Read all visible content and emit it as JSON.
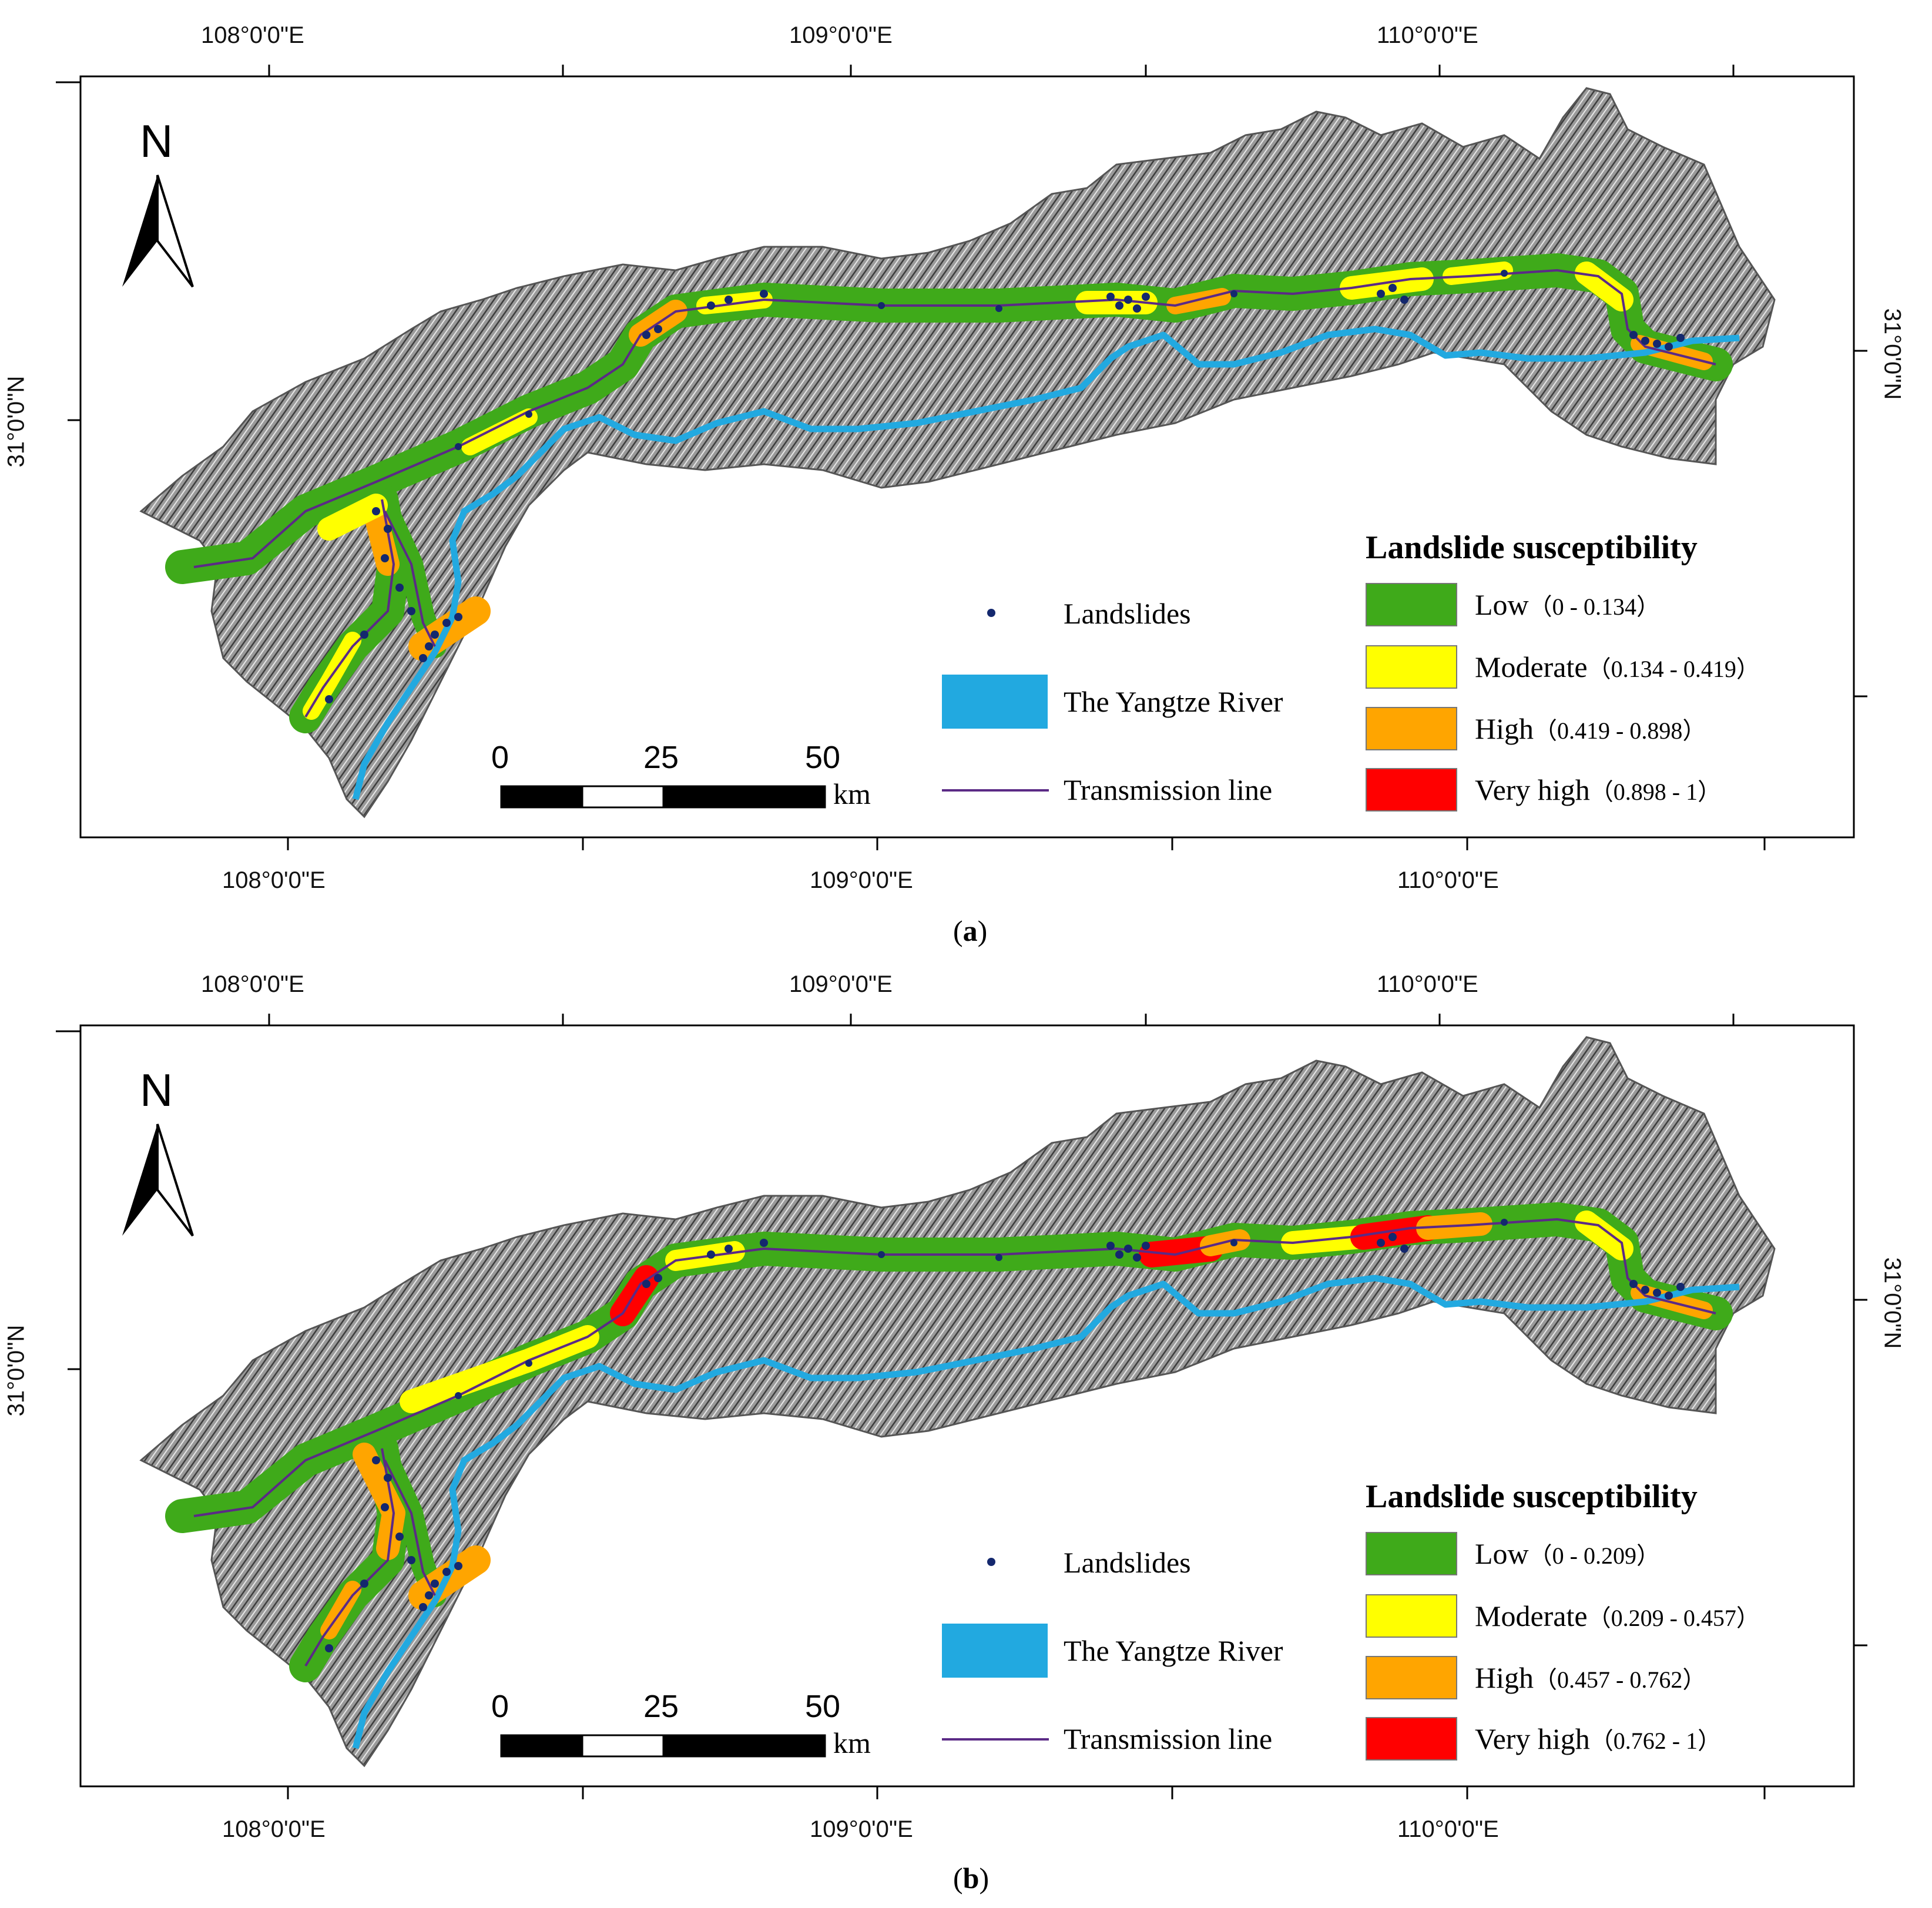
{
  "panels": [
    {
      "caption_letter": "a",
      "legend": {
        "title": "Landslide susceptibility",
        "classes": [
          {
            "label": "Low",
            "range": "（0 - 0.134）",
            "color": "#3faa1a"
          },
          {
            "label": "Moderate",
            "range": "（0.134 - 0.419）",
            "color": "#ffff00"
          },
          {
            "label": "High",
            "range": "（0.419 - 0.898）",
            "color": "#ffa500"
          },
          {
            "label": "Very high",
            "range": "（0.898 - 1）",
            "color": "#ff0000"
          }
        ],
        "landslides_label": "Landslides",
        "river_label": "The Yangtze River",
        "line_label": "Transmission line"
      }
    },
    {
      "caption_letter": "b",
      "legend": {
        "title": "Landslide susceptibility",
        "classes": [
          {
            "label": "Low",
            "range": "（0 - 0.209）",
            "color": "#3faa1a"
          },
          {
            "label": "Moderate",
            "range": "（0.209 - 0.457）",
            "color": "#ffff00"
          },
          {
            "label": "High",
            "range": "（0.457 - 0.762）",
            "color": "#ffa500"
          },
          {
            "label": "Very high",
            "range": "（0.762 - 1）",
            "color": "#ff0000"
          }
        ],
        "landslides_label": "Landslides",
        "river_label": "The Yangtze River",
        "line_label": "Transmission line"
      }
    }
  ],
  "graticule": {
    "lon_labels": [
      "108°0'0\"E",
      "109°0'0\"E",
      "110°0'0\"E"
    ],
    "lat_label": "31°0'0\"N"
  },
  "north_arrow": {
    "letter": "N"
  },
  "scale_bar": {
    "ticks": [
      "0",
      "25",
      "50"
    ],
    "unit": "km"
  },
  "colors": {
    "river": "#22a9e0",
    "transmission_line": "#5b2a86",
    "landslide_point": "#14286e",
    "terrain": "#8a8a8a"
  }
}
